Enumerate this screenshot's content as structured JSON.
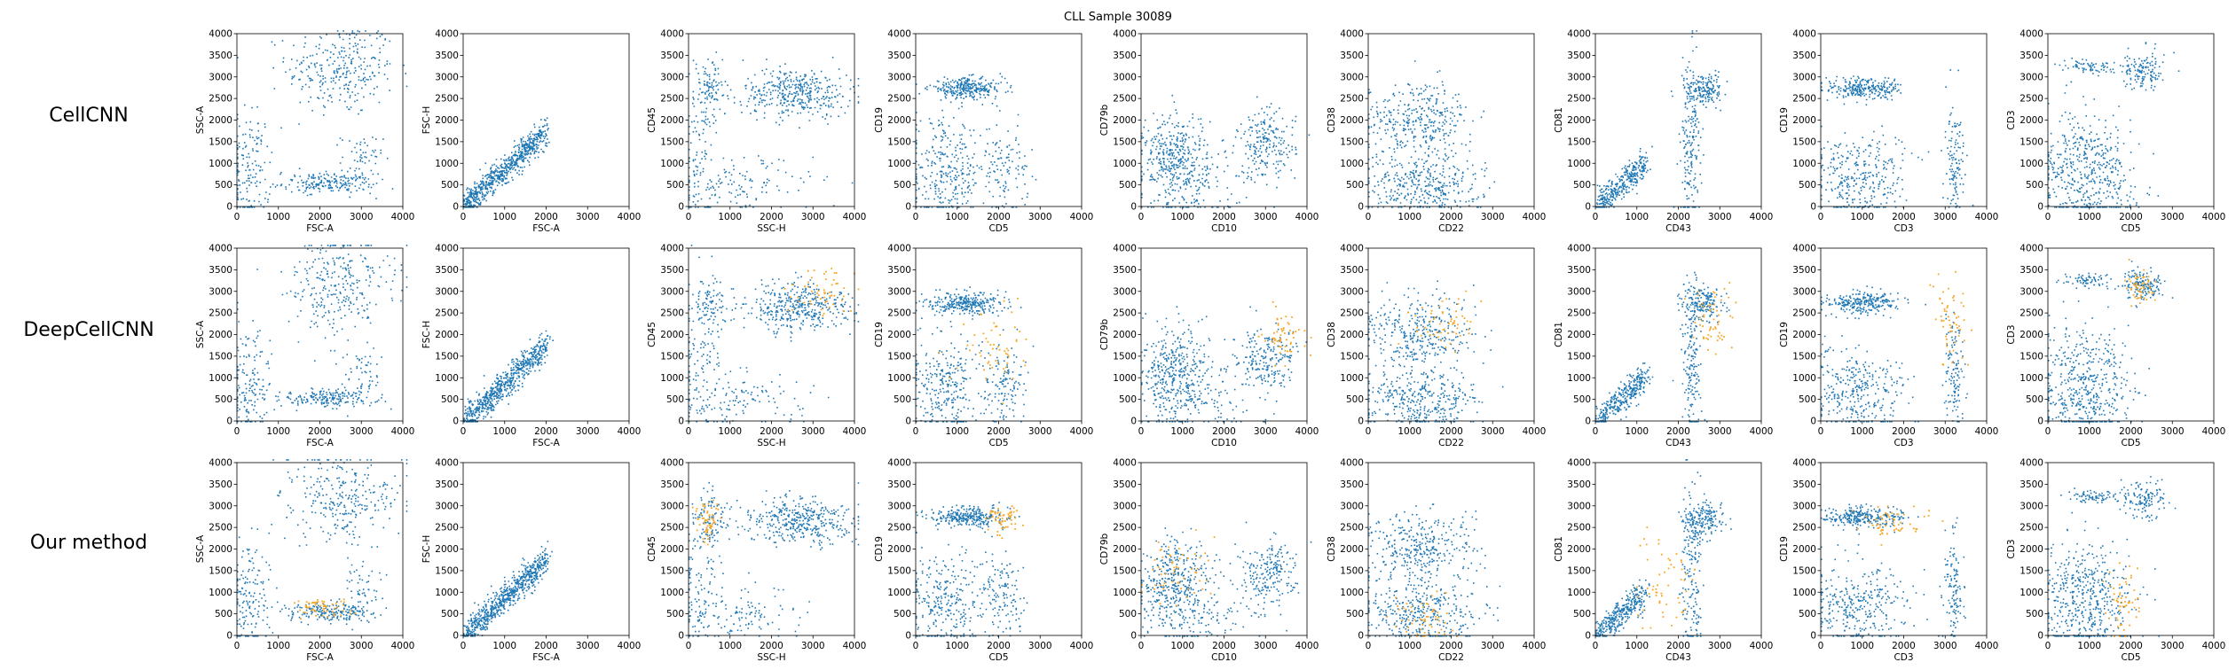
{
  "figure": {
    "title": "CLL Sample 30089",
    "row_labels": [
      "CellCNN",
      "DeepCellCNN",
      "Our method"
    ]
  },
  "colors": {
    "background_points": "#1f77b4",
    "highlight_points": "#f5a623"
  },
  "chart_data": {
    "type": "scatter",
    "title": "CLL Sample 30089",
    "axis_range": [
      0,
      4000
    ],
    "ticks": [
      0,
      500,
      1000,
      1500,
      2000,
      2500,
      3000,
      3500,
      4000
    ],
    "x_ticks": [
      0,
      1000,
      2000,
      3000,
      4000
    ],
    "rows": [
      "CellCNN",
      "DeepCellCNN",
      "Our method"
    ],
    "columns": [
      {
        "xlabel": "FSC-A",
        "ylabel": "SSC-A",
        "clusters": [
          [
            2500,
            3200,
            650,
            550,
            0.42
          ],
          [
            2200,
            550,
            550,
            110,
            0.28
          ],
          [
            300,
            900,
            250,
            700,
            0.22
          ],
          [
            3000,
            1100,
            250,
            300,
            0.08
          ]
        ],
        "highlight": [
          [],
          [],
          [
            [
              2000,
              650,
              350,
              120,
              0.4
            ]
          ]
        ]
      },
      {
        "xlabel": "FSC-A",
        "ylabel": "FSC-H",
        "clusters": [
          [
            2000,
            1450,
            1000,
            300,
            1.0,
            "diag"
          ]
        ],
        "highlight": [
          [],
          [],
          []
        ]
      },
      {
        "xlabel": "SSC-H",
        "ylabel": "CD45",
        "clusters": [
          [
            2600,
            2650,
            650,
            280,
            0.55
          ],
          [
            500,
            2750,
            220,
            300,
            0.12
          ],
          [
            1200,
            500,
            900,
            350,
            0.18
          ],
          [
            300,
            1500,
            250,
            900,
            0.15
          ]
        ],
        "highlight": [
          [],
          [
            [
              3200,
              3000,
              450,
              300,
              0.4
            ]
          ],
          [
            [
              400,
              2700,
              150,
              250,
              0.4
            ]
          ]
        ]
      },
      {
        "xlabel": "CD5",
        "ylabel": "CD19",
        "clusters": [
          [
            1200,
            2750,
            450,
            120,
            0.42
          ],
          [
            700,
            800,
            450,
            600,
            0.4
          ],
          [
            2100,
            900,
            300,
            500,
            0.18
          ]
        ],
        "highlight": [
          [],
          [
            [
              1900,
              1700,
              400,
              500,
              0.4
            ]
          ],
          [
            [
              2100,
              2700,
              200,
              200,
              0.4
            ]
          ]
        ]
      },
      {
        "xlabel": "CD10",
        "ylabel": "CD79b",
        "clusters": [
          [
            800,
            1100,
            400,
            550,
            0.55
          ],
          [
            3000,
            1450,
            350,
            400,
            0.3
          ],
          [
            1400,
            500,
            700,
            500,
            0.15
          ]
        ],
        "highlight": [
          [],
          [
            [
              3400,
              2000,
              250,
              300,
              0.4
            ]
          ],
          [
            [
              900,
              1400,
              400,
              500,
              0.4
            ]
          ]
        ]
      },
      {
        "xlabel": "CD22",
        "ylabel": "CD38",
        "clusters": [
          [
            1200,
            2000,
            650,
            450,
            0.5
          ],
          [
            1300,
            500,
            700,
            350,
            0.5
          ]
        ],
        "highlight": [
          [],
          [
            [
              1800,
              2300,
              350,
              300,
              0.4
            ]
          ],
          [
            [
              1300,
              450,
              400,
              300,
              0.4
            ]
          ]
        ]
      },
      {
        "xlabel": "CD43",
        "ylabel": "CD81",
        "clusters": [
          [
            1200,
            1000,
            600,
            450,
            0.5,
            "diag"
          ],
          [
            2300,
            1300,
            120,
            1000,
            0.25
          ],
          [
            2600,
            2700,
            250,
            200,
            0.25
          ]
        ],
        "highlight": [
          [],
          [
            [
              2800,
              2400,
              250,
              500,
              0.4
            ]
          ],
          [
            [
              1700,
              1200,
              400,
              600,
              0.4
            ]
          ]
        ]
      },
      {
        "xlabel": "CD3",
        "ylabel": "CD19",
        "clusters": [
          [
            1000,
            2750,
            450,
            130,
            0.38
          ],
          [
            900,
            700,
            600,
            500,
            0.45
          ],
          [
            3200,
            1100,
            120,
            650,
            0.17
          ]
        ],
        "highlight": [
          [],
          [
            [
              3100,
              2300,
              200,
              500,
              0.4
            ]
          ],
          [
            [
              1600,
              2650,
              400,
              200,
              0.4
            ]
          ]
        ]
      },
      {
        "xlabel": "CD5",
        "ylabel": "CD3",
        "clusters": [
          [
            1000,
            3250,
            350,
            80,
            0.1
          ],
          [
            2300,
            3150,
            250,
            200,
            0.2
          ],
          [
            900,
            800,
            550,
            650,
            0.7
          ]
        ],
        "highlight": [
          [],
          [
            [
              2200,
              3100,
              200,
              200,
              0.4
            ]
          ],
          [
            [
              1750,
              900,
              200,
              500,
              0.4
            ]
          ]
        ]
      }
    ]
  }
}
